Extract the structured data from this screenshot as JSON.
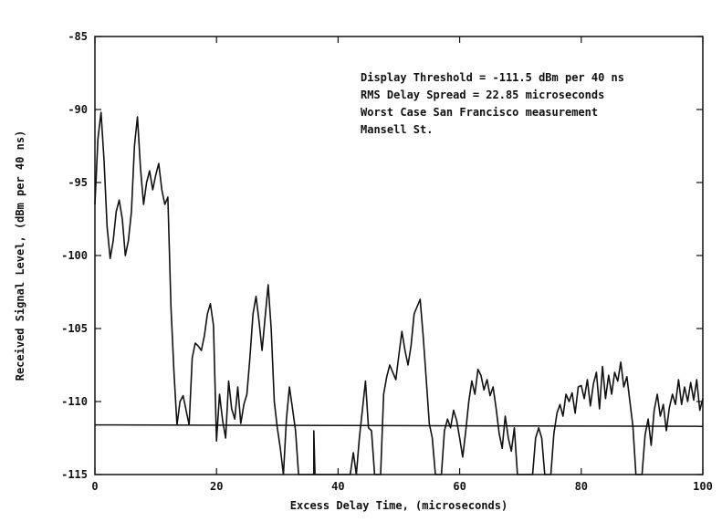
{
  "chart_data": {
    "type": "line",
    "title": "",
    "xlabel": "Excess Delay Time, (microseconds)",
    "ylabel": "Received Signal Level, (dBm per 40 ns)",
    "xlim": [
      0,
      100
    ],
    "ylim": [
      -115,
      -85
    ],
    "xticks": [
      0,
      20,
      40,
      60,
      80,
      100
    ],
    "yticks": [
      -115,
      -110,
      -105,
      -100,
      -95,
      -90,
      -85
    ],
    "xtick_labels": [
      "0",
      "20",
      "40",
      "60",
      "80",
      "100"
    ],
    "ytick_labels": [
      "-115",
      "-110",
      "-105",
      "-100",
      "-95",
      "-90",
      "-85"
    ],
    "grid": false,
    "annotations": [
      "Display Threshold = -111.5 dBm per 40 ns",
      "RMS Delay Spread  = 22.85 microseconds",
      "Worst Case San Francisco measurement",
      "Mansell St."
    ],
    "threshold": {
      "x": [
        0,
        100
      ],
      "y": [
        -111.6,
        -111.7
      ]
    },
    "series": [
      {
        "values": [
          [
            0.0,
            -96.5
          ],
          [
            0.5,
            -92.0
          ],
          [
            1.0,
            -90.2
          ],
          [
            1.5,
            -93.5
          ],
          [
            2.0,
            -98.0
          ],
          [
            2.5,
            -100.2
          ],
          [
            3.0,
            -99.0
          ],
          [
            3.5,
            -97.0
          ],
          [
            4.0,
            -96.2
          ],
          [
            4.5,
            -97.5
          ],
          [
            5.0,
            -100.0
          ],
          [
            5.5,
            -99.0
          ],
          [
            6.0,
            -97.0
          ],
          [
            6.5,
            -92.5
          ],
          [
            7.0,
            -90.5
          ],
          [
            7.5,
            -94.0
          ],
          [
            8.0,
            -96.5
          ],
          [
            8.5,
            -95.0
          ],
          [
            9.0,
            -94.2
          ],
          [
            9.5,
            -95.5
          ],
          [
            10.0,
            -94.5
          ],
          [
            10.5,
            -93.7
          ],
          [
            11.0,
            -95.5
          ],
          [
            11.5,
            -96.5
          ],
          [
            12.0,
            -96.0
          ],
          [
            12.5,
            -103.5
          ],
          [
            13.0,
            -108.0
          ],
          [
            13.5,
            -111.6
          ],
          [
            14.0,
            -110.0
          ],
          [
            14.5,
            -109.6
          ],
          [
            15.0,
            -110.6
          ],
          [
            15.5,
            -111.6
          ],
          [
            16.0,
            -107.0
          ],
          [
            16.5,
            -106.0
          ],
          [
            17.0,
            -106.2
          ],
          [
            17.5,
            -106.5
          ],
          [
            18.0,
            -105.5
          ],
          [
            18.5,
            -104.0
          ],
          [
            19.0,
            -103.3
          ],
          [
            19.5,
            -104.8
          ],
          [
            20.0,
            -112.7
          ],
          [
            20.5,
            -109.5
          ],
          [
            21.0,
            -111.3
          ],
          [
            21.5,
            -112.5
          ],
          [
            22.0,
            -108.6
          ],
          [
            22.5,
            -110.5
          ],
          [
            23.0,
            -111.2
          ],
          [
            23.5,
            -109.0
          ],
          [
            24.0,
            -111.5
          ],
          [
            24.5,
            -110.2
          ],
          [
            25.0,
            -109.5
          ],
          [
            25.5,
            -107.0
          ],
          [
            26.0,
            -104.0
          ],
          [
            26.5,
            -102.8
          ],
          [
            27.0,
            -104.5
          ],
          [
            27.5,
            -106.5
          ],
          [
            28.0,
            -104.2
          ],
          [
            28.5,
            -102.0
          ],
          [
            29.0,
            -105.0
          ],
          [
            29.5,
            -110.0
          ],
          [
            30.0,
            -111.8
          ],
          [
            30.5,
            -113.2
          ],
          [
            31.0,
            -115.0
          ],
          [
            31.5,
            -111.2
          ],
          [
            32.0,
            -109.0
          ],
          [
            32.5,
            -110.5
          ],
          [
            33.0,
            -112.0
          ],
          [
            33.5,
            -115.0
          ],
          [
            36.0,
            -115.0
          ],
          [
            36.0,
            -112.0
          ],
          [
            36.2,
            -115.0
          ],
          [
            42.0,
            -115.0
          ],
          [
            42.5,
            -113.5
          ],
          [
            43.0,
            -115.0
          ],
          [
            43.5,
            -112.5
          ],
          [
            44.0,
            -110.6
          ],
          [
            44.5,
            -108.6
          ],
          [
            45.0,
            -111.8
          ],
          [
            45.5,
            -112.0
          ],
          [
            46.0,
            -115.0
          ],
          [
            47.0,
            -115.0
          ],
          [
            47.5,
            -109.5
          ],
          [
            48.0,
            -108.3
          ],
          [
            48.5,
            -107.5
          ],
          [
            49.0,
            -108.0
          ],
          [
            49.5,
            -108.5
          ],
          [
            50.0,
            -106.8
          ],
          [
            50.5,
            -105.2
          ],
          [
            51.0,
            -106.5
          ],
          [
            51.5,
            -107.5
          ],
          [
            52.0,
            -106.2
          ],
          [
            52.5,
            -104.0
          ],
          [
            53.0,
            -103.5
          ],
          [
            53.5,
            -103.0
          ],
          [
            54.0,
            -105.5
          ],
          [
            54.5,
            -108.5
          ],
          [
            55.0,
            -111.5
          ],
          [
            55.5,
            -112.5
          ],
          [
            56.0,
            -115.0
          ],
          [
            57.0,
            -115.0
          ],
          [
            57.5,
            -112.0
          ],
          [
            58.0,
            -111.2
          ],
          [
            58.5,
            -111.8
          ],
          [
            59.0,
            -110.6
          ],
          [
            59.5,
            -111.3
          ],
          [
            60.0,
            -112.5
          ],
          [
            60.5,
            -113.8
          ],
          [
            61.0,
            -112.0
          ],
          [
            61.5,
            -110.0
          ],
          [
            62.0,
            -108.6
          ],
          [
            62.5,
            -109.5
          ],
          [
            63.0,
            -107.8
          ],
          [
            63.5,
            -108.2
          ],
          [
            64.0,
            -109.2
          ],
          [
            64.5,
            -108.5
          ],
          [
            65.0,
            -109.6
          ],
          [
            65.5,
            -109.0
          ],
          [
            66.0,
            -110.5
          ],
          [
            66.5,
            -112.2
          ],
          [
            67.0,
            -113.2
          ],
          [
            67.5,
            -111.0
          ],
          [
            68.0,
            -112.5
          ],
          [
            68.5,
            -113.4
          ],
          [
            69.0,
            -111.8
          ],
          [
            69.5,
            -115.0
          ],
          [
            72.0,
            -115.0
          ],
          [
            72.5,
            -112.5
          ],
          [
            73.0,
            -111.8
          ],
          [
            73.5,
            -112.5
          ],
          [
            74.0,
            -115.0
          ],
          [
            75.0,
            -115.0
          ],
          [
            75.5,
            -112.2
          ],
          [
            76.0,
            -110.8
          ],
          [
            76.5,
            -110.2
          ],
          [
            77.0,
            -111.0
          ],
          [
            77.5,
            -109.5
          ],
          [
            78.0,
            -110.0
          ],
          [
            78.5,
            -109.4
          ],
          [
            79.0,
            -110.8
          ],
          [
            79.5,
            -109.0
          ],
          [
            80.0,
            -108.9
          ],
          [
            80.5,
            -109.8
          ],
          [
            81.0,
            -108.5
          ],
          [
            81.5,
            -110.3
          ],
          [
            82.0,
            -108.8
          ],
          [
            82.5,
            -108.0
          ],
          [
            83.0,
            -110.5
          ],
          [
            83.5,
            -107.6
          ],
          [
            84.0,
            -109.8
          ],
          [
            84.5,
            -108.2
          ],
          [
            85.0,
            -109.5
          ],
          [
            85.5,
            -108.0
          ],
          [
            86.0,
            -108.6
          ],
          [
            86.5,
            -107.3
          ],
          [
            87.0,
            -109.0
          ],
          [
            87.5,
            -108.3
          ],
          [
            88.0,
            -110.0
          ],
          [
            88.5,
            -111.7
          ],
          [
            89.0,
            -115.0
          ],
          [
            90.0,
            -115.0
          ],
          [
            90.5,
            -112.3
          ],
          [
            91.0,
            -111.2
          ],
          [
            91.5,
            -113.0
          ],
          [
            92.0,
            -110.6
          ],
          [
            92.5,
            -109.5
          ],
          [
            93.0,
            -111.0
          ],
          [
            93.5,
            -110.2
          ],
          [
            94.0,
            -112.0
          ],
          [
            94.5,
            -110.4
          ],
          [
            95.0,
            -109.5
          ],
          [
            95.5,
            -110.2
          ],
          [
            96.0,
            -108.5
          ],
          [
            96.5,
            -110.2
          ],
          [
            97.0,
            -109.0
          ],
          [
            97.5,
            -110.0
          ],
          [
            98.0,
            -108.7
          ],
          [
            98.5,
            -109.9
          ],
          [
            99.0,
            -108.5
          ],
          [
            99.5,
            -110.6
          ],
          [
            100.0,
            -109.8
          ]
        ]
      }
    ]
  }
}
